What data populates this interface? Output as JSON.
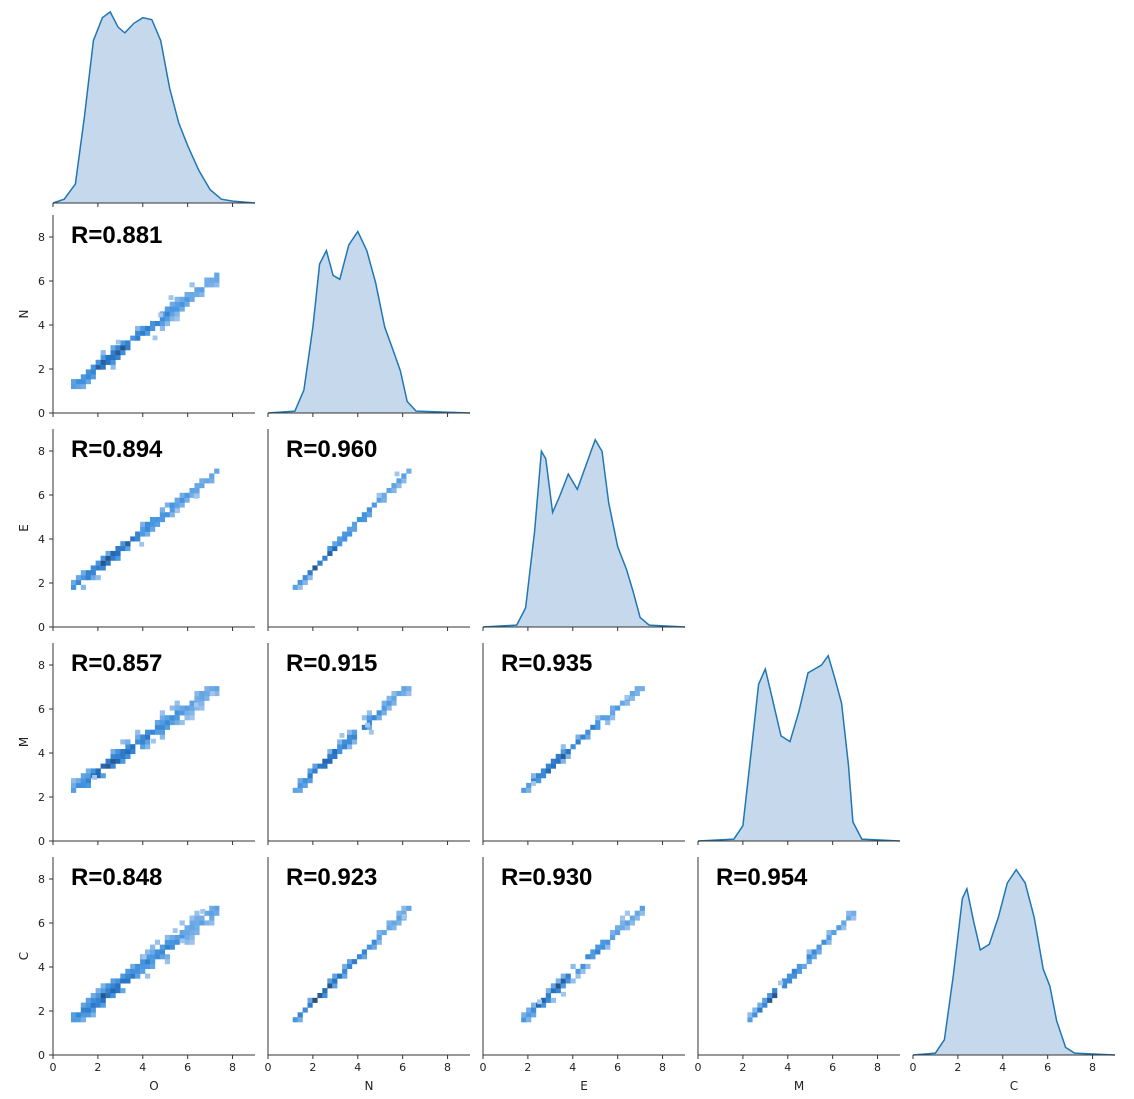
{
  "chart_data": {
    "type": "pairplot",
    "description": "Corner pair plot: KDE density on the diagonal, 2D histograms below the diagonal, Pearson R annotated in each lower panel",
    "variables": [
      "O",
      "N",
      "E",
      "M",
      "C"
    ],
    "xlabels": [
      "O",
      "N",
      "E",
      "M",
      "C"
    ],
    "ylabels": [
      "",
      "N",
      "E",
      "M",
      "C"
    ],
    "axis_range": [
      0,
      9
    ],
    "ticks": [
      0,
      2,
      4,
      6,
      8
    ],
    "tick_labels": [
      "0",
      "2",
      "4",
      "6",
      "8"
    ],
    "color": "#1f77b4",
    "kde_fill": "#c6d9ec",
    "kde": {
      "O": [
        [
          0.0,
          0
        ],
        [
          0.5,
          0.02
        ],
        [
          1.0,
          0.1
        ],
        [
          1.4,
          0.45
        ],
        [
          1.8,
          0.85
        ],
        [
          2.2,
          0.97
        ],
        [
          2.55,
          1.0
        ],
        [
          2.9,
          0.92
        ],
        [
          3.2,
          0.89
        ],
        [
          3.6,
          0.94
        ],
        [
          4.0,
          0.97
        ],
        [
          4.4,
          0.96
        ],
        [
          4.8,
          0.85
        ],
        [
          5.2,
          0.6
        ],
        [
          5.6,
          0.42
        ],
        [
          6.0,
          0.3
        ],
        [
          6.5,
          0.17
        ],
        [
          7.0,
          0.07
        ],
        [
          7.5,
          0.02
        ],
        [
          8.0,
          0.01
        ],
        [
          9.0,
          0
        ]
      ],
      "N": [
        [
          0.0,
          0
        ],
        [
          1.2,
          0.01
        ],
        [
          1.6,
          0.12
        ],
        [
          2.0,
          0.45
        ],
        [
          2.3,
          0.78
        ],
        [
          2.6,
          0.85
        ],
        [
          2.9,
          0.72
        ],
        [
          3.2,
          0.7
        ],
        [
          3.6,
          0.88
        ],
        [
          4.0,
          0.95
        ],
        [
          4.4,
          0.85
        ],
        [
          4.8,
          0.68
        ],
        [
          5.2,
          0.45
        ],
        [
          5.6,
          0.32
        ],
        [
          5.9,
          0.22
        ],
        [
          6.2,
          0.06
        ],
        [
          6.6,
          0.01
        ],
        [
          9.0,
          0
        ]
      ],
      "E": [
        [
          0.0,
          0
        ],
        [
          1.5,
          0.01
        ],
        [
          1.9,
          0.1
        ],
        [
          2.3,
          0.5
        ],
        [
          2.6,
          0.92
        ],
        [
          2.8,
          0.88
        ],
        [
          3.1,
          0.6
        ],
        [
          3.4,
          0.68
        ],
        [
          3.8,
          0.8
        ],
        [
          4.2,
          0.72
        ],
        [
          4.6,
          0.85
        ],
        [
          5.0,
          0.98
        ],
        [
          5.3,
          0.92
        ],
        [
          5.6,
          0.65
        ],
        [
          6.0,
          0.42
        ],
        [
          6.4,
          0.3
        ],
        [
          6.7,
          0.18
        ],
        [
          7.0,
          0.05
        ],
        [
          7.4,
          0.01
        ],
        [
          9.0,
          0
        ]
      ],
      "M": [
        [
          0.0,
          0
        ],
        [
          1.6,
          0.01
        ],
        [
          2.0,
          0.08
        ],
        [
          2.4,
          0.5
        ],
        [
          2.7,
          0.82
        ],
        [
          3.0,
          0.9
        ],
        [
          3.3,
          0.75
        ],
        [
          3.7,
          0.55
        ],
        [
          4.1,
          0.52
        ],
        [
          4.5,
          0.68
        ],
        [
          4.9,
          0.88
        ],
        [
          5.2,
          0.9
        ],
        [
          5.5,
          0.92
        ],
        [
          5.8,
          0.97
        ],
        [
          6.1,
          0.85
        ],
        [
          6.4,
          0.72
        ],
        [
          6.7,
          0.4
        ],
        [
          6.9,
          0.1
        ],
        [
          7.3,
          0.01
        ],
        [
          9.0,
          0
        ]
      ],
      "C": [
        [
          0.0,
          0
        ],
        [
          1.0,
          0.01
        ],
        [
          1.4,
          0.08
        ],
        [
          1.8,
          0.42
        ],
        [
          2.2,
          0.82
        ],
        [
          2.4,
          0.87
        ],
        [
          2.7,
          0.7
        ],
        [
          3.0,
          0.55
        ],
        [
          3.4,
          0.58
        ],
        [
          3.8,
          0.72
        ],
        [
          4.2,
          0.9
        ],
        [
          4.6,
          0.97
        ],
        [
          5.0,
          0.9
        ],
        [
          5.4,
          0.72
        ],
        [
          5.8,
          0.45
        ],
        [
          6.1,
          0.36
        ],
        [
          6.4,
          0.18
        ],
        [
          6.8,
          0.04
        ],
        [
          7.2,
          0.01
        ],
        [
          9.0,
          0
        ]
      ]
    },
    "correlations": [
      {
        "x": "O",
        "y": "N",
        "label": "R=0.881",
        "r": 0.881
      },
      {
        "x": "O",
        "y": "E",
        "label": "R=0.894",
        "r": 0.894
      },
      {
        "x": "N",
        "y": "E",
        "label": "R=0.960",
        "r": 0.96
      },
      {
        "x": "O",
        "y": "M",
        "label": "R=0.857",
        "r": 0.857
      },
      {
        "x": "N",
        "y": "M",
        "label": "R=0.915",
        "r": 0.915
      },
      {
        "x": "E",
        "y": "M",
        "label": "R=0.935",
        "r": 0.935
      },
      {
        "x": "O",
        "y": "C",
        "label": "R=0.848",
        "r": 0.848
      },
      {
        "x": "N",
        "y": "C",
        "label": "R=0.923",
        "r": 0.923
      },
      {
        "x": "E",
        "y": "C",
        "label": "R=0.930",
        "r": 0.93
      },
      {
        "x": "M",
        "y": "C",
        "label": "R=0.954",
        "r": 0.954
      }
    ],
    "hist2d_ranges": {
      "O": [
        0.8,
        7.3
      ],
      "N": [
        1.1,
        6.2
      ],
      "E": [
        1.7,
        7.0
      ],
      "M": [
        2.2,
        7.0
      ],
      "C": [
        1.5,
        6.6
      ]
    }
  }
}
